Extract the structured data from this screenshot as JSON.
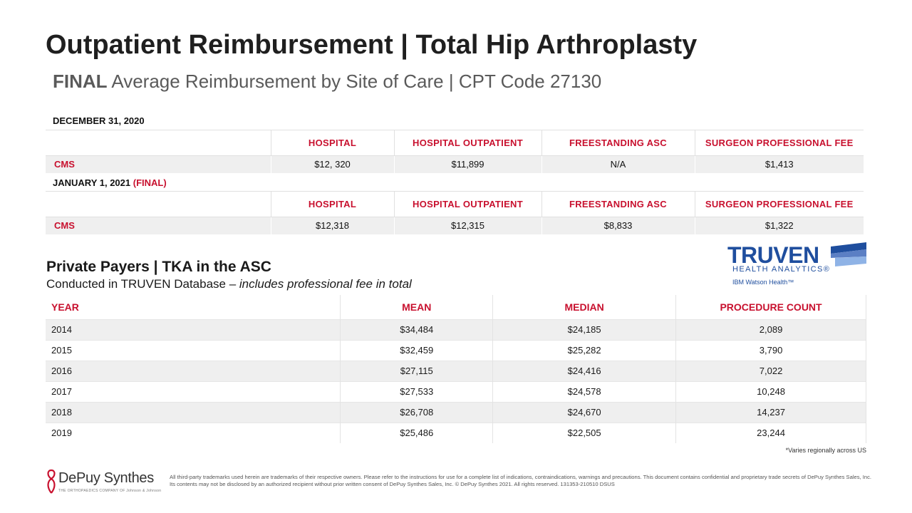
{
  "header": {
    "title": "Outpatient Reimbursement | Total Hip Arthroplasty",
    "subtitle_bold": "FINAL",
    "subtitle_rest": " Average Reimbursement by Site of Care | CPT Code 27130"
  },
  "cms_2020": {
    "date_label": "DECEMBER 31, 2020",
    "columns": [
      "HOSPITAL",
      "HOSPITAL OUTPATIENT",
      "FREESTANDING ASC",
      "SURGEON PROFESSIONAL FEE"
    ],
    "row_label": "CMS",
    "values": [
      "$12, 320",
      "$11,899",
      "N/A",
      "$1,413"
    ]
  },
  "cms_2021": {
    "date_label": "JANUARY 1, 2021",
    "date_suffix": "(FINAL)",
    "columns": [
      "HOSPITAL",
      "HOSPITAL OUTPATIENT",
      "FREESTANDING ASC",
      "SURGEON PROFESSIONAL FEE"
    ],
    "row_label": "CMS",
    "values": [
      "$12,318",
      "$12,315",
      "$8,833",
      "$1,322"
    ]
  },
  "private_payers": {
    "title": "Private Payers | TKA in the ASC",
    "subtitle_plain": "Conducted in TRUVEN Database – ",
    "subtitle_italic": "includes professional fee in total",
    "columns": [
      "YEAR",
      "MEAN",
      "MEDIAN",
      "PROCEDURE COUNT"
    ],
    "rows": [
      [
        "2014",
        "$34,484",
        "$24,185",
        "2,089"
      ],
      [
        "2015",
        "$32,459",
        "$25,282",
        "3,790"
      ],
      [
        "2016",
        "$27,115",
        "$24,416",
        "7,022"
      ],
      [
        "2017",
        "$27,533",
        "$24,578",
        "10,248"
      ],
      [
        "2018",
        "$26,708",
        "$24,670",
        "14,237"
      ],
      [
        "2019",
        "$25,486",
        "$22,505",
        "23,244"
      ]
    ]
  },
  "truven_logo": {
    "word": "TRUVEN",
    "line2": "HEALTH ANALYTICS",
    "reg": "®",
    "line3": "IBM Watson Health",
    "tm": "™",
    "color": "#1f4e9e"
  },
  "footnote": "*Varies regionally across US",
  "depuy_logo": {
    "word": "DePuy Synthes",
    "tagline": "THE ORTHOPAEDICS COMPANY OF Johnson & Johnson",
    "color": "#c8102e"
  },
  "legal": "All third-party trademarks used herein are trademarks of their respective owners. Please refer to the instructions for use for a complete list of indications, contraindications, warnings and precautions. This document contains confidential and proprietary trade secrets of DePuy Synthes Sales, Inc. Its contents may not be disclosed by an authorized recipient without prior written consent of DePuy Synthes Sales, Inc. © DePuy Synthes  2021. All rights reserved. 131353-210510 DSUS",
  "colors": {
    "accent": "#c8102e",
    "row_shade": "#efefef"
  }
}
